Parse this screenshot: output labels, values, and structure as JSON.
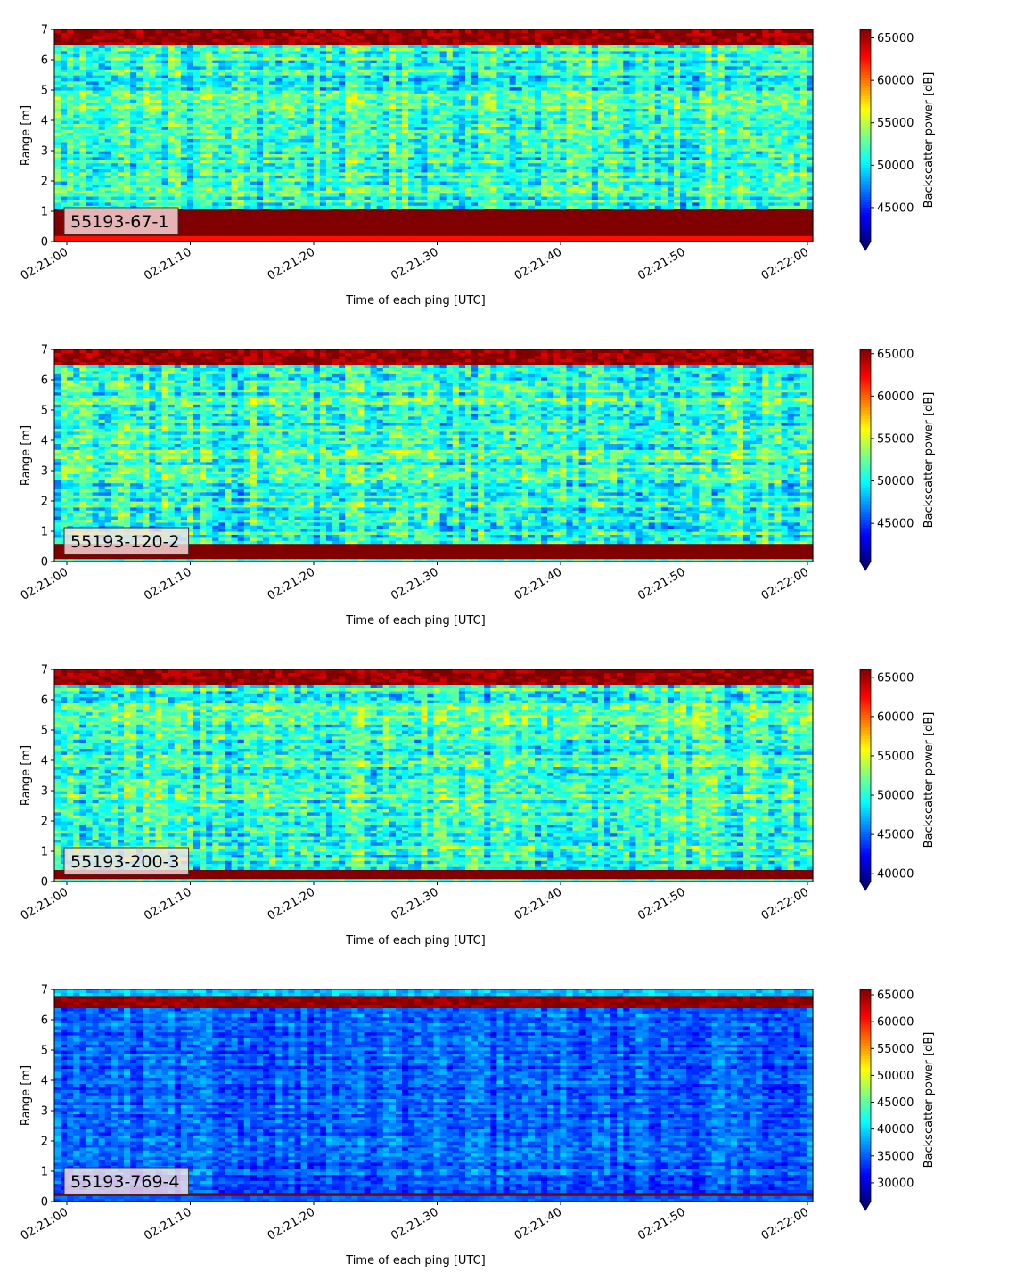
{
  "chart_data": [
    {
      "type": "heatmap",
      "panel_label": "55193-67-1",
      "xlabel": "Time of each ping [UTC]",
      "ylabel": "Range [m]",
      "colorbar_label": "Backscatter power [dB]",
      "colormap": "jet",
      "colorbar_extend": "min",
      "xlim": [
        "02:21:00",
        "02:22:00"
      ],
      "ylim": [
        0,
        7
      ],
      "x_ticks": [
        "02:21:00",
        "02:21:10",
        "02:21:20",
        "02:21:30",
        "02:21:40",
        "02:21:50",
        "02:22:00"
      ],
      "y_ticks": [
        "0",
        "1",
        "2",
        "3",
        "4",
        "5",
        "6",
        "7"
      ],
      "clim": [
        41000,
        66000
      ],
      "colorbar_ticks": [
        45000,
        50000,
        55000,
        60000,
        65000
      ],
      "colorbar_tick_labels": [
        "45000",
        "50000",
        "55000",
        "60000",
        "65000"
      ],
      "features": {
        "bottom_band_m": [
          0.25,
          1.1
        ],
        "top_band_m": [
          6.5,
          7.0
        ],
        "mid_mean_db": 51500,
        "mid_spread_db": 4000
      }
    },
    {
      "type": "heatmap",
      "panel_label": "55193-120-2",
      "xlabel": "Time of each ping [UTC]",
      "ylabel": "Range [m]",
      "colorbar_label": "Backscatter power [dB]",
      "colormap": "jet",
      "colorbar_extend": "min",
      "xlim": [
        "02:21:00",
        "02:22:00"
      ],
      "ylim": [
        0,
        7
      ],
      "x_ticks": [
        "02:21:00",
        "02:21:10",
        "02:21:20",
        "02:21:30",
        "02:21:40",
        "02:21:50",
        "02:22:00"
      ],
      "y_ticks": [
        "0",
        "1",
        "2",
        "3",
        "4",
        "5",
        "6",
        "7"
      ],
      "clim": [
        40500,
        65500
      ],
      "colorbar_ticks": [
        45000,
        50000,
        55000,
        60000,
        65000
      ],
      "colorbar_tick_labels": [
        "45000",
        "50000",
        "55000",
        "60000",
        "65000"
      ],
      "features": {
        "bottom_band_m": [
          0.1,
          0.55
        ],
        "top_band_m": [
          6.5,
          7.0
        ],
        "mid_mean_db": 51000,
        "mid_spread_db": 4200
      }
    },
    {
      "type": "heatmap",
      "panel_label": "55193-200-3",
      "xlabel": "Time of each ping [UTC]",
      "ylabel": "Range [m]",
      "colorbar_label": "Backscatter power [dB]",
      "colormap": "jet",
      "colorbar_extend": "min",
      "xlim": [
        "02:21:00",
        "02:22:00"
      ],
      "ylim": [
        0,
        7
      ],
      "x_ticks": [
        "02:21:00",
        "02:21:10",
        "02:21:20",
        "02:21:30",
        "02:21:40",
        "02:21:50",
        "02:22:00"
      ],
      "y_ticks": [
        "0",
        "1",
        "2",
        "3",
        "4",
        "5",
        "6",
        "7"
      ],
      "clim": [
        39000,
        66000
      ],
      "colorbar_ticks": [
        40000,
        45000,
        50000,
        55000,
        60000,
        65000
      ],
      "colorbar_tick_labels": [
        "40000",
        "45000",
        "50000",
        "55000",
        "60000",
        "65000"
      ],
      "features": {
        "bottom_band_m": [
          0.12,
          0.38
        ],
        "top_band_m": [
          6.55,
          6.95
        ],
        "mid_mean_db": 50500,
        "mid_spread_db": 4500
      }
    },
    {
      "type": "heatmap",
      "panel_label": "55193-769-4",
      "xlabel": "Time of each ping [UTC]",
      "ylabel": "Range [m]",
      "colorbar_label": "Backscatter power [dB]",
      "colormap": "jet",
      "colorbar_extend": "min",
      "xlim": [
        "02:21:00",
        "02:22:00"
      ],
      "ylim": [
        0,
        7
      ],
      "x_ticks": [
        "02:21:00",
        "02:21:10",
        "02:21:20",
        "02:21:30",
        "02:21:40",
        "02:21:50",
        "02:22:00"
      ],
      "y_ticks": [
        "0",
        "1",
        "2",
        "3",
        "4",
        "5",
        "6",
        "7"
      ],
      "clim": [
        26500,
        66000
      ],
      "colorbar_ticks": [
        30000,
        35000,
        40000,
        45000,
        50000,
        55000,
        60000,
        65000
      ],
      "colorbar_tick_labels": [
        "30000",
        "35000",
        "40000",
        "45000",
        "50000",
        "55000",
        "60000",
        "65000"
      ],
      "features": {
        "bottom_band_m": [
          0.18,
          0.32
        ],
        "top_band_m": [
          6.4,
          6.75
        ],
        "mid_mean_db": 35000,
        "mid_spread_db": 3500
      }
    }
  ]
}
